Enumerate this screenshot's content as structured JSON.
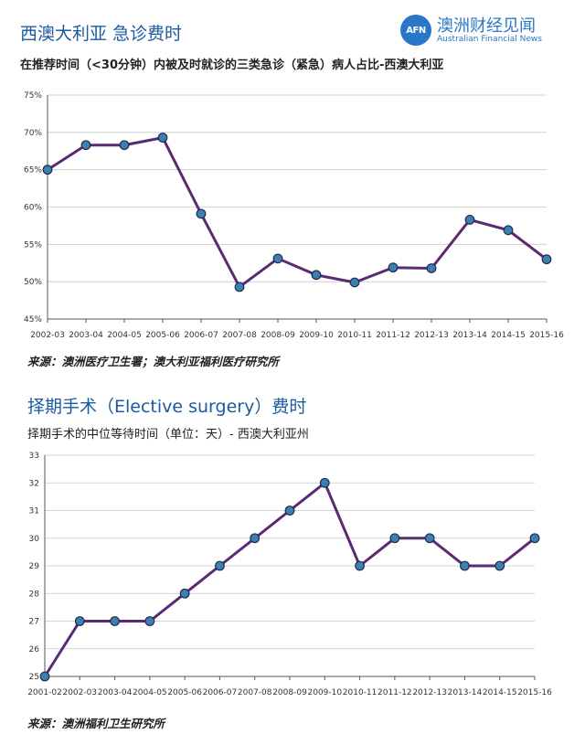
{
  "header": {
    "title1": "西澳大利亚   急诊费时",
    "subtitle1": "在推荐时间（<30分钟）内被及时就诊的三类急诊（紧急）病人占比-西澳大利亚",
    "source1": "来源：澳洲医疗卫生署；澳大利亚福利医疗研究所",
    "title2": "择期手术（Elective surgery）费时",
    "subtitle2": "择期手术的中位等待时间（单位：天）- 西澳大利亚州",
    "source2": "来源：澳洲福利卫生研究所"
  },
  "logo": {
    "badge": "AFN",
    "name_cn": "澳洲财经见闻",
    "name_en": "Australian Financial News"
  },
  "colors": {
    "title": "#1a5aa0",
    "line": "#5b2a73",
    "marker": "#3d7fb3",
    "logo": "#2a77c9"
  },
  "chart_data": [
    {
      "type": "line",
      "title": "在推荐时间（<30分钟）内被及时就诊的三类急诊（紧急）病人占比-西澳大利亚",
      "xlabel": "",
      "ylabel": "",
      "categories": [
        "2002-03",
        "2003-04",
        "2004-05",
        "2005-06",
        "2006-07",
        "2007-08",
        "2008-09",
        "2009-10",
        "2010-11",
        "2011-12",
        "2012-13",
        "2013-14",
        "2014-15",
        "2015-16"
      ],
      "values": [
        65,
        68.3,
        68.3,
        69.3,
        59.1,
        49.3,
        53.1,
        50.9,
        49.9,
        51.9,
        51.8,
        58.3,
        56.9,
        53.0
      ],
      "ylim": [
        45,
        75
      ],
      "ytick_values": [
        45,
        50,
        55,
        60,
        65,
        70,
        75
      ],
      "ytick_labels": [
        "45%",
        "50%",
        "55%",
        "60%",
        "65%",
        "70%",
        "75%"
      ],
      "grid": true
    },
    {
      "type": "line",
      "title": "择期手术的中位等待时间（单位：天）- 西澳大利亚州",
      "xlabel": "",
      "ylabel": "",
      "categories": [
        "2001-02",
        "2002-03",
        "2003-04",
        "2004-05",
        "2005-06",
        "2006-07",
        "2007-08",
        "2008-09",
        "2009-10",
        "2010-11",
        "2011-12",
        "2012-13",
        "2013-14",
        "2014-15",
        "2015-16"
      ],
      "values": [
        25,
        27,
        27,
        27,
        28,
        29,
        30,
        31,
        32,
        29,
        30,
        30,
        29,
        29,
        30
      ],
      "ylim": [
        25,
        33
      ],
      "ytick_values": [
        25,
        26,
        27,
        28,
        29,
        30,
        31,
        32,
        33
      ],
      "ytick_labels": [
        "25",
        "26",
        "27",
        "28",
        "29",
        "30",
        "31",
        "32",
        "33"
      ],
      "grid": true
    }
  ]
}
